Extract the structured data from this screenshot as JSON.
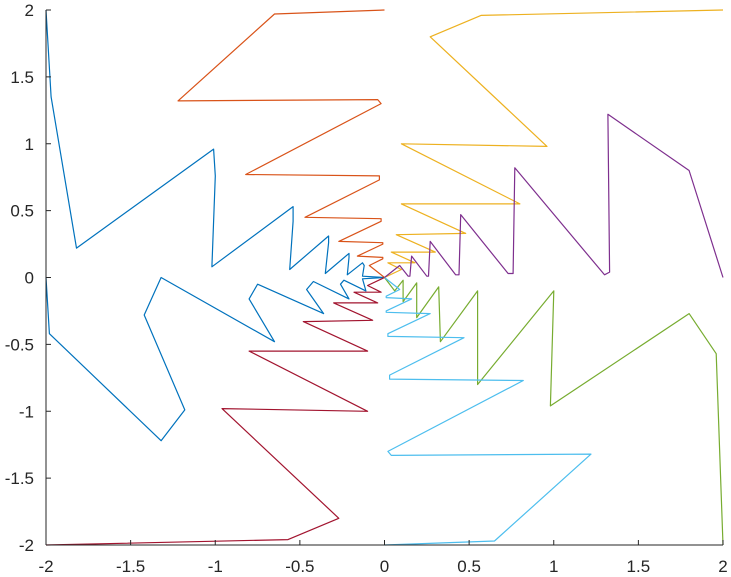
{
  "chart_data": {
    "type": "line",
    "title": "",
    "xlabel": "",
    "ylabel": "",
    "xlim": [
      -2,
      2
    ],
    "ylim": [
      -2,
      2
    ],
    "xticks": [
      -2,
      -1.5,
      -1,
      -0.5,
      0,
      0.5,
      1,
      1.5,
      2
    ],
    "yticks": [
      -2,
      -1.5,
      -1,
      -0.5,
      0,
      0.5,
      1,
      1.5,
      2
    ],
    "xtick_labels": [
      "-2",
      "-1.5",
      "-1",
      "-0.5",
      "0",
      "0.5",
      "1",
      "1.5",
      "2"
    ],
    "ytick_labels": [
      "-2",
      "-1.5",
      "-1",
      "-0.5",
      "0",
      "0.5",
      "1",
      "1.5",
      "2"
    ],
    "grid": false,
    "legend": "none",
    "series": [
      {
        "color": "#0072BD",
        "points": [
          [
            -2,
            2
          ],
          [
            -1.97,
            1.35
          ],
          [
            -1.82,
            0.22
          ],
          [
            -1.01,
            0.96
          ],
          [
            -1.0,
            0.76
          ],
          [
            -1.02,
            0.08
          ],
          [
            -0.54,
            0.53
          ],
          [
            -0.54,
            0.42
          ],
          [
            -0.56,
            0.06
          ],
          [
            -0.33,
            0.31
          ],
          [
            -0.33,
            0.26
          ],
          [
            -0.35,
            0.03
          ],
          [
            -0.21,
            0.18
          ],
          [
            -0.21,
            0.15
          ],
          [
            -0.22,
            0.02
          ],
          [
            -0.13,
            0.11
          ],
          [
            -0.12,
            0.09
          ],
          [
            -0.13,
            0.01
          ],
          [
            0,
            0
          ],
          [
            -0.13,
            -0.01
          ],
          [
            -0.11,
            -0.1
          ],
          [
            -0.24,
            -0.02
          ],
          [
            -0.26,
            -0.05
          ],
          [
            -0.21,
            -0.16
          ],
          [
            -0.42,
            -0.03
          ],
          [
            -0.46,
            -0.09
          ],
          [
            -0.36,
            -0.27
          ],
          [
            -0.75,
            -0.05
          ],
          [
            -0.8,
            -0.16
          ],
          [
            -0.65,
            -0.48
          ],
          [
            -1.32,
            0.0
          ],
          [
            -1.42,
            -0.28
          ],
          [
            -1.18,
            -0.99
          ],
          [
            -1.32,
            -1.22
          ],
          [
            -1.98,
            -0.42
          ],
          [
            -2,
            0
          ]
        ]
      },
      {
        "color": "#D95319",
        "points": [
          [
            0,
            2
          ],
          [
            -0.65,
            1.97
          ],
          [
            -1.22,
            1.32
          ],
          [
            -0.04,
            1.33
          ],
          [
            -0.02,
            1.3
          ],
          [
            -0.82,
            0.77
          ],
          [
            -0.03,
            0.76
          ],
          [
            -0.03,
            0.73
          ],
          [
            -0.47,
            0.45
          ],
          [
            -0.02,
            0.44
          ],
          [
            -0.02,
            0.42
          ],
          [
            -0.27,
            0.27
          ],
          [
            -0.01,
            0.26
          ],
          [
            -0.01,
            0.25
          ],
          [
            -0.16,
            0.16
          ],
          [
            -0.01,
            0.15
          ],
          [
            -0.01,
            0.14
          ],
          [
            -0.09,
            0.09
          ],
          [
            0,
            0
          ]
        ]
      },
      {
        "color": "#EDB120",
        "points": [
          [
            2,
            2
          ],
          [
            0.57,
            1.96
          ],
          [
            0.27,
            1.8
          ],
          [
            0.96,
            0.98
          ],
          [
            0.1,
            1.0
          ],
          [
            0.8,
            0.55
          ],
          [
            0.1,
            0.55
          ],
          [
            0.48,
            0.33
          ],
          [
            0.07,
            0.32
          ],
          [
            0.3,
            0.19
          ],
          [
            0.04,
            0.19
          ],
          [
            0.18,
            0.11
          ],
          [
            0.02,
            0.11
          ],
          [
            0.1,
            0.06
          ],
          [
            0,
            0
          ]
        ]
      },
      {
        "color": "#7E2F8E",
        "points": [
          [
            2,
            0
          ],
          [
            1.8,
            0.8
          ],
          [
            1.32,
            1.22
          ],
          [
            1.33,
            0.04
          ],
          [
            1.3,
            0.02
          ],
          [
            0.77,
            0.82
          ],
          [
            0.76,
            0.03
          ],
          [
            0.73,
            0.03
          ],
          [
            0.45,
            0.47
          ],
          [
            0.44,
            0.02
          ],
          [
            0.42,
            0.02
          ],
          [
            0.27,
            0.27
          ],
          [
            0.26,
            0.01
          ],
          [
            0.25,
            0.01
          ],
          [
            0.16,
            0.16
          ],
          [
            0.15,
            0.01
          ],
          [
            0.14,
            0.01
          ],
          [
            0.09,
            0.09
          ],
          [
            0,
            0
          ]
        ]
      },
      {
        "color": "#77AC30",
        "points": [
          [
            2,
            -2
          ],
          [
            1.96,
            -0.57
          ],
          [
            1.8,
            -0.27
          ],
          [
            0.98,
            -0.96
          ],
          [
            1.0,
            -0.1
          ],
          [
            0.55,
            -0.8
          ],
          [
            0.55,
            -0.1
          ],
          [
            0.33,
            -0.48
          ],
          [
            0.32,
            -0.07
          ],
          [
            0.19,
            -0.3
          ],
          [
            0.19,
            -0.04
          ],
          [
            0.11,
            -0.18
          ],
          [
            0.11,
            -0.02
          ],
          [
            0.06,
            -0.1
          ],
          [
            0,
            0
          ]
        ]
      },
      {
        "color": "#4DBEEE",
        "points": [
          [
            0,
            -2
          ],
          [
            0.65,
            -1.97
          ],
          [
            1.22,
            -1.32
          ],
          [
            0.04,
            -1.33
          ],
          [
            0.02,
            -1.3
          ],
          [
            0.82,
            -0.77
          ],
          [
            0.03,
            -0.76
          ],
          [
            0.03,
            -0.73
          ],
          [
            0.47,
            -0.45
          ],
          [
            0.02,
            -0.44
          ],
          [
            0.02,
            -0.42
          ],
          [
            0.27,
            -0.27
          ],
          [
            0.01,
            -0.26
          ],
          [
            0.01,
            -0.25
          ],
          [
            0.16,
            -0.16
          ],
          [
            0.01,
            -0.15
          ],
          [
            0.01,
            -0.14
          ],
          [
            0.09,
            -0.09
          ],
          [
            0,
            0
          ]
        ]
      },
      {
        "color": "#A2142F",
        "points": [
          [
            -2,
            -2
          ],
          [
            -0.57,
            -1.96
          ],
          [
            -0.27,
            -1.8
          ],
          [
            -0.96,
            -0.98
          ],
          [
            -0.1,
            -1.0
          ],
          [
            -0.8,
            -0.55
          ],
          [
            -0.1,
            -0.55
          ],
          [
            -0.48,
            -0.33
          ],
          [
            -0.07,
            -0.32
          ],
          [
            -0.3,
            -0.19
          ],
          [
            -0.04,
            -0.19
          ],
          [
            -0.18,
            -0.11
          ],
          [
            -0.02,
            -0.11
          ],
          [
            -0.1,
            -0.06
          ],
          [
            0,
            0
          ]
        ]
      }
    ]
  }
}
